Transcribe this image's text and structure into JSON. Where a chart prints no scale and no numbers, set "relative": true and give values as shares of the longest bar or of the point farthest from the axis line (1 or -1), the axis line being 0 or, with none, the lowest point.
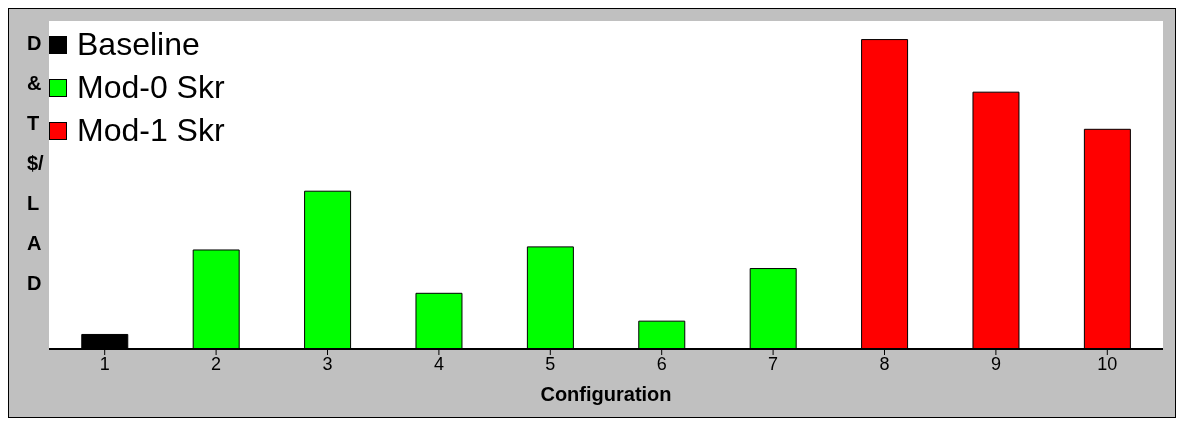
{
  "chart_data": {
    "type": "bar",
    "relative": true,
    "xlabel": "Configuration",
    "ylabel": "D&T$/LAD",
    "legend": "top left",
    "categories": [
      "1",
      "2",
      "3",
      "4",
      "5",
      "6",
      "7",
      "8",
      "9",
      "10"
    ],
    "series": [
      {
        "name": "Baseline",
        "color": "#000000",
        "values": [
          0.047,
          null,
          null,
          null,
          null,
          null,
          null,
          null,
          null,
          null
        ]
      },
      {
        "name": "Mod-0 Skr",
        "color": "#00ff00",
        "values": [
          null,
          0.32,
          0.51,
          0.18,
          0.33,
          0.09,
          0.26,
          null,
          null,
          null
        ]
      },
      {
        "name": "Mod-1 Skr",
        "color": "#ff0000",
        "values": [
          null,
          null,
          null,
          null,
          null,
          null,
          null,
          1,
          0.83,
          0.71
        ]
      }
    ]
  }
}
